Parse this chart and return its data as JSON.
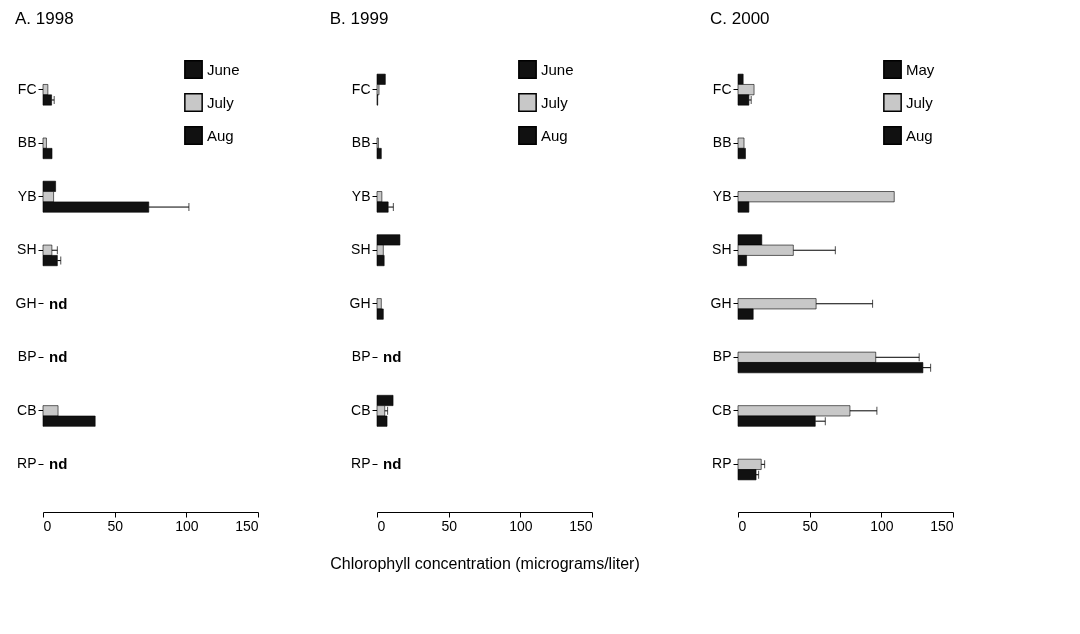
{
  "chart_data": [
    {
      "type": "bar",
      "orientation": "horizontal",
      "title": "A. 1998",
      "categories": [
        "FC",
        "BB",
        "YB",
        "SH",
        "GH",
        "BP",
        "CB",
        "RP"
      ],
      "xlim": [
        0,
        150
      ],
      "xticks": [
        0,
        50,
        100,
        150
      ],
      "legend": "top right",
      "series": [
        {
          "name": "June",
          "color": "#111111",
          "values": [
            null,
            null,
            8.8,
            null,
            null,
            null,
            null,
            null
          ]
        },
        {
          "name": "July",
          "color": "#c8c8c8",
          "values": [
            3.4,
            2.4,
            7.4,
            6.2,
            null,
            null,
            10.5,
            null
          ],
          "errors": [
            null,
            null,
            null,
            3.8,
            null,
            null,
            null,
            null
          ]
        },
        {
          "name": "Aug",
          "color": "#111111",
          "values": [
            6,
            6.3,
            73.8,
            10,
            null,
            null,
            36.4,
            null
          ],
          "errors": [
            1.8,
            null,
            28,
            2.4,
            null,
            null,
            null,
            null
          ]
        }
      ],
      "annotations": [
        "nd",
        "nd",
        "nd"
      ]
    },
    {
      "type": "bar",
      "orientation": "horizontal",
      "title": "B. 1999",
      "xlabel": "Chlorophyll concentration (micrograms/liter)",
      "categories": [
        "FC",
        "BB",
        "YB",
        "SH",
        "GH",
        "BP",
        "CB",
        "RP"
      ],
      "xlim": [
        0,
        150
      ],
      "xticks": [
        0,
        50,
        100,
        150
      ],
      "legend": "top right",
      "series": [
        {
          "name": "June",
          "color": "#111111",
          "values": [
            5.8,
            null,
            null,
            16,
            null,
            null,
            11.2,
            null
          ]
        },
        {
          "name": "July",
          "color": "#c8c8c8",
          "values": [
            1.4,
            1,
            3.4,
            4.4,
            3,
            null,
            5.4,
            null
          ],
          "errors": [
            null,
            null,
            null,
            null,
            null,
            null,
            2,
            null
          ]
        },
        {
          "name": "Aug",
          "color": "#111111",
          "values": [
            0.5,
            3,
            7.8,
            5,
            4.4,
            null,
            7,
            null
          ],
          "errors": [
            null,
            null,
            3.6,
            null,
            null,
            null,
            null,
            null
          ]
        }
      ],
      "annotations": [
        "nd",
        "nd"
      ]
    },
    {
      "type": "bar",
      "orientation": "horizontal",
      "title": "C. 2000",
      "categories": [
        "FC",
        "BB",
        "YB",
        "SH",
        "GH",
        "BP",
        "CB",
        "RP"
      ],
      "xlim": [
        0,
        150
      ],
      "xticks": [
        0,
        50,
        100,
        150
      ],
      "legend": "top right",
      "series": [
        {
          "name": "May",
          "color": "#111111",
          "values": [
            3.6,
            null,
            null,
            16.6,
            null,
            null,
            null,
            null
          ]
        },
        {
          "name": "July",
          "color": "#c8c8c8",
          "values": [
            11.2,
            4.2,
            109,
            38.6,
            54.5,
            96.1,
            78.1,
            16.2
          ],
          "errors": [
            null,
            null,
            null,
            29.3,
            39.4,
            30.3,
            18.8,
            2.4
          ]
        },
        {
          "name": "Aug",
          "color": "#111111",
          "values": [
            7.6,
            5.2,
            7.6,
            6,
            10.6,
            129,
            53.9,
            12.6
          ],
          "errors": [
            1.6,
            null,
            null,
            null,
            null,
            5.4,
            7,
            1.8
          ]
        }
      ]
    }
  ]
}
